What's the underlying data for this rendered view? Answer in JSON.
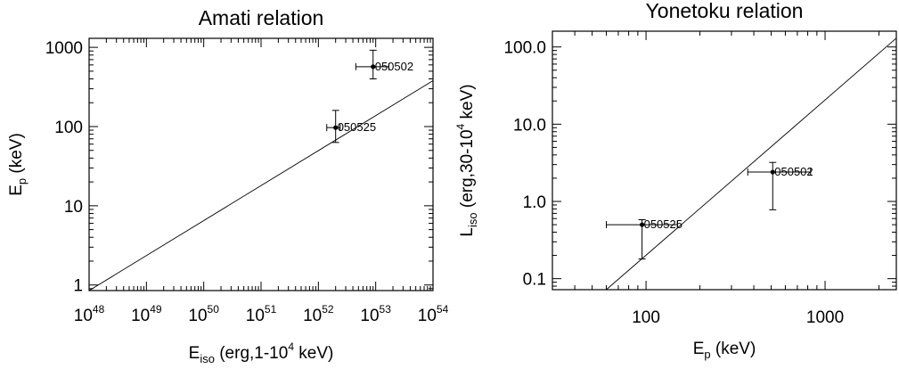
{
  "chart_data": [
    {
      "type": "scatter",
      "title": "Amati relation",
      "xlabel": {
        "main": "E",
        "sub": "iso",
        "rest1": " (erg,1-10",
        "sup": "4",
        "rest2": " keV)"
      },
      "ylabel": {
        "main": "E",
        "sub": "p",
        "rest": " (keV)"
      },
      "x_scale": "log",
      "y_scale": "log",
      "xlim": [
        1e+48,
        1e+54
      ],
      "ylim": [
        0.85,
        1300
      ],
      "x_ticks": [
        {
          "value": 1e+48,
          "base": "10",
          "exp": "48"
        },
        {
          "value": 1e+49,
          "base": "10",
          "exp": "49"
        },
        {
          "value": 1e+50,
          "base": "10",
          "exp": "50"
        },
        {
          "value": 1e+51,
          "base": "10",
          "exp": "51"
        },
        {
          "value": 1e+52,
          "base": "10",
          "exp": "52"
        },
        {
          "value": 1e+53,
          "base": "10",
          "exp": "53"
        },
        {
          "value": 1e+54,
          "base": "10",
          "exp": "54"
        }
      ],
      "y_ticks": [
        {
          "value": 1,
          "label": "1"
        },
        {
          "value": 10,
          "label": "10"
        },
        {
          "value": 100,
          "label": "100"
        },
        {
          "value": 1000,
          "label": "1000"
        }
      ],
      "fit_line": {
        "x": [
          1e+48,
          1e+54
        ],
        "y": [
          0.85,
          380
        ]
      },
      "points": [
        {
          "label": "050502",
          "x": 9e+52,
          "y": 570,
          "x_err": [
            4.5e+52,
            1.7e+53
          ],
          "y_err": [
            400,
            920
          ]
        },
        {
          "label": "050525",
          "x": 2e+52,
          "y": 97,
          "x_err": [
            1.4e+52,
            2.4e+52
          ],
          "y_err": [
            63,
            160
          ]
        }
      ]
    },
    {
      "type": "scatter",
      "title": "Yonetoku relation",
      "xlabel": {
        "main": "E",
        "sub": "p",
        "rest": " (keV)"
      },
      "ylabel": {
        "main": "L",
        "sub": "iso",
        "rest1": " (erg,30-10",
        "sup": "4",
        "rest2": " keV)"
      },
      "x_scale": "log",
      "y_scale": "log",
      "xlim": [
        30,
        2500
      ],
      "ylim": [
        0.072,
        160
      ],
      "x_ticks": [
        {
          "value": 100,
          "label": "100"
        },
        {
          "value": 1000,
          "label": "1000"
        }
      ],
      "y_ticks": [
        {
          "value": 0.1,
          "label": "0.1"
        },
        {
          "value": 1,
          "label": "1.0"
        },
        {
          "value": 10,
          "label": "10.0"
        },
        {
          "value": 100,
          "label": "100.0"
        }
      ],
      "fit_line": {
        "x": [
          60,
          2500
        ],
        "y": [
          0.072,
          130
        ]
      },
      "points": [
        {
          "label": "050502",
          "x": 510,
          "y": 2.4,
          "x_err": [
            370,
            830
          ],
          "y_err": [
            0.78,
            3.2
          ]
        },
        {
          "label": "050525",
          "x": 95,
          "y": 0.5,
          "x_err": [
            60,
            150
          ],
          "y_err": [
            0.18,
            0.58
          ]
        }
      ]
    }
  ]
}
